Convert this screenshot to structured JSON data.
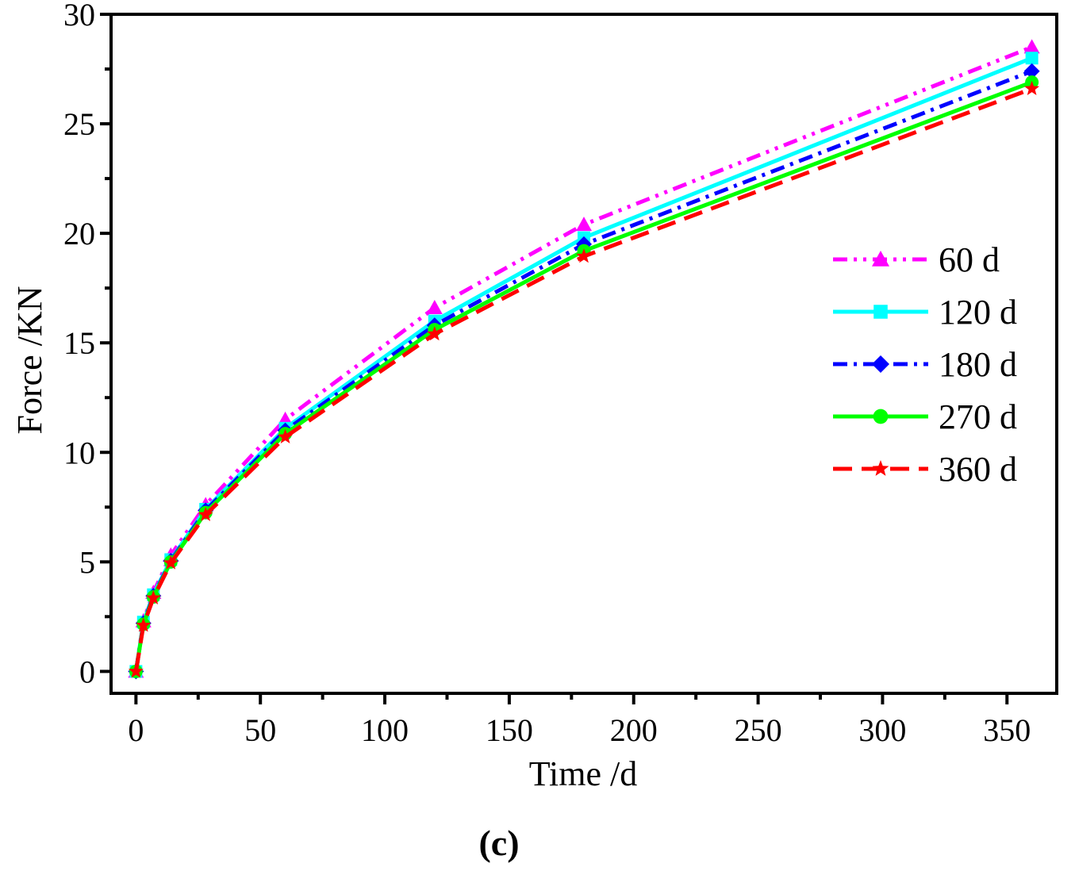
{
  "chart_data": {
    "type": "line",
    "title": "",
    "xlabel": "Time /d",
    "ylabel": "Force /KN",
    "xlim": [
      -10,
      370
    ],
    "ylim": [
      -1,
      30
    ],
    "xticks": [
      0,
      50,
      100,
      150,
      200,
      250,
      300,
      350
    ],
    "yticks": [
      0,
      5,
      10,
      15,
      20,
      25,
      30
    ],
    "xtick_labels": [
      "0",
      "50",
      "100",
      "150",
      "200",
      "250",
      "300",
      "350"
    ],
    "ytick_labels": [
      "0",
      "5",
      "10",
      "15",
      "20",
      "25",
      "30"
    ],
    "x": [
      0,
      3,
      7,
      14,
      28,
      60,
      120,
      180,
      360
    ],
    "series": [
      {
        "name": "60 d",
        "values": [
          0,
          2.3,
          3.6,
          5.3,
          7.6,
          11.5,
          16.6,
          20.4,
          28.5
        ],
        "color": "#ff00ff",
        "dash": "dash-dot-dot",
        "marker": "triangle"
      },
      {
        "name": "120 d",
        "values": [
          0,
          2.25,
          3.5,
          5.1,
          7.4,
          11.1,
          16.0,
          19.8,
          28.0
        ],
        "color": "#00ffff",
        "dash": "solid",
        "marker": "square"
      },
      {
        "name": "180 d",
        "values": [
          0,
          2.2,
          3.45,
          5.05,
          7.35,
          11.0,
          15.8,
          19.5,
          27.4
        ],
        "color": "#0000ff",
        "dash": "dash-dot",
        "marker": "diamond"
      },
      {
        "name": "270 d",
        "values": [
          0,
          2.15,
          3.4,
          5.0,
          7.25,
          10.85,
          15.6,
          19.2,
          26.9
        ],
        "color": "#00ff00",
        "dash": "solid",
        "marker": "circle"
      },
      {
        "name": "360 d",
        "values": [
          0,
          2.1,
          3.35,
          4.95,
          7.15,
          10.7,
          15.4,
          18.95,
          26.6
        ],
        "color": "#ff0000",
        "dash": "dash",
        "marker": "star"
      }
    ],
    "legend_position": "right-middle",
    "grid": false
  },
  "panel_label": "(c)"
}
